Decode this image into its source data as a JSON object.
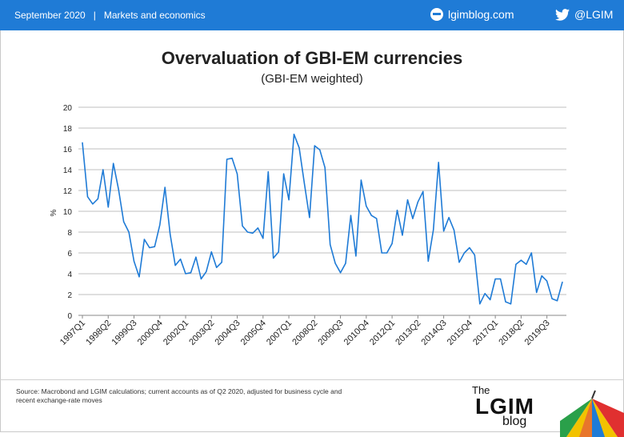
{
  "header": {
    "date": "September 2020",
    "divider": "|",
    "section": "Markets and economics",
    "site": "lgimblog.com",
    "twitter": "@LGIM"
  },
  "title": "Overvaluation of GBI-EM currencies",
  "subtitle": "(GBI-EM weighted)",
  "source": "Source: Macrobond and LGIM calculations; current accounts as of Q2 2020, adjusted for business cycle and recent exchange-rate moves",
  "logo": {
    "the": "The",
    "name": "LGIM",
    "blog": "blog"
  },
  "colors": {
    "header": "#1f7bd6",
    "line": "#1f7bd6",
    "grid": "#bfbfbf"
  },
  "chart_data": {
    "type": "line",
    "title": "Overvaluation of GBI-EM currencies",
    "subtitle": "(GBI-EM weighted)",
    "xlabel": "",
    "ylabel": "%",
    "ylim": [
      0,
      20
    ],
    "yticks": [
      0,
      2,
      4,
      6,
      8,
      10,
      12,
      14,
      16,
      18,
      20
    ],
    "grid": true,
    "x": [
      "1997Q1",
      "1997Q2",
      "1997Q3",
      "1997Q4",
      "1998Q1",
      "1998Q2",
      "1998Q3",
      "1998Q4",
      "1999Q1",
      "1999Q2",
      "1999Q3",
      "1999Q4",
      "2000Q1",
      "2000Q2",
      "2000Q3",
      "2000Q4",
      "2001Q1",
      "2001Q2",
      "2001Q3",
      "2001Q4",
      "2002Q1",
      "2002Q2",
      "2002Q3",
      "2002Q4",
      "2003Q1",
      "2003Q2",
      "2003Q3",
      "2003Q4",
      "2004Q1",
      "2004Q2",
      "2004Q3",
      "2004Q4",
      "2005Q1",
      "2005Q2",
      "2005Q3",
      "2005Q4",
      "2006Q1",
      "2006Q2",
      "2006Q3",
      "2006Q4",
      "2007Q1",
      "2007Q2",
      "2007Q3",
      "2007Q4",
      "2008Q1",
      "2008Q2",
      "2008Q3",
      "2008Q4",
      "2009Q1",
      "2009Q2",
      "2009Q3",
      "2009Q4",
      "2010Q1",
      "2010Q2",
      "2010Q3",
      "2010Q4",
      "2011Q1",
      "2011Q2",
      "2011Q3",
      "2011Q4",
      "2012Q1",
      "2012Q2",
      "2012Q3",
      "2012Q4",
      "2013Q1",
      "2013Q2",
      "2013Q3",
      "2013Q4",
      "2014Q1",
      "2014Q2",
      "2014Q3",
      "2014Q4",
      "2015Q1",
      "2015Q2",
      "2015Q3",
      "2015Q4",
      "2016Q1",
      "2016Q2",
      "2016Q3",
      "2016Q4",
      "2017Q1",
      "2017Q2",
      "2017Q3",
      "2017Q4",
      "2018Q1",
      "2018Q2",
      "2018Q3",
      "2018Q4",
      "2019Q1",
      "2019Q2",
      "2019Q3",
      "2019Q4",
      "2020Q1",
      "2020Q2"
    ],
    "xtick_labels": [
      "1997Q1",
      "1998Q2",
      "1999Q3",
      "2000Q4",
      "2002Q1",
      "2003Q2",
      "2004Q3",
      "2005Q4",
      "2007Q1",
      "2008Q2",
      "2009Q3",
      "2010Q4",
      "2012Q1",
      "2013Q2",
      "2014Q3",
      "2015Q4",
      "2017Q1",
      "2018Q2",
      "2019Q3"
    ],
    "series": [
      {
        "values": [
          16.6,
          11.4,
          10.7,
          11.2,
          14.0,
          10.4,
          14.6,
          12.1,
          9.0,
          8.0,
          5.2,
          3.7,
          7.3,
          6.5,
          6.6,
          8.7,
          12.3,
          7.8,
          4.8,
          5.4,
          4.0,
          4.1,
          5.6,
          3.5,
          4.2,
          6.1,
          4.6,
          5.1,
          15.0,
          15.1,
          13.6,
          8.6,
          8.0,
          7.9,
          8.4,
          7.4,
          13.8,
          5.5,
          6.1,
          13.6,
          11.1,
          17.4,
          16.1,
          12.7,
          9.4,
          16.3,
          15.9,
          14.2,
          6.8,
          5.0,
          4.1,
          5.0,
          9.6,
          5.7,
          13.0,
          10.5,
          9.6,
          9.3,
          6.0,
          6.0,
          6.9,
          10.1,
          7.7,
          11.1,
          9.3,
          10.9,
          11.9,
          5.2,
          8.2,
          14.7,
          8.1,
          9.4,
          8.2,
          5.1,
          6.0,
          6.5,
          5.8,
          1.1,
          2.1,
          1.5,
          3.5,
          3.5,
          1.3,
          1.1,
          4.9,
          5.3,
          4.9,
          6.0,
          2.2,
          3.8,
          3.3,
          1.6,
          1.4,
          3.2
        ]
      }
    ]
  }
}
